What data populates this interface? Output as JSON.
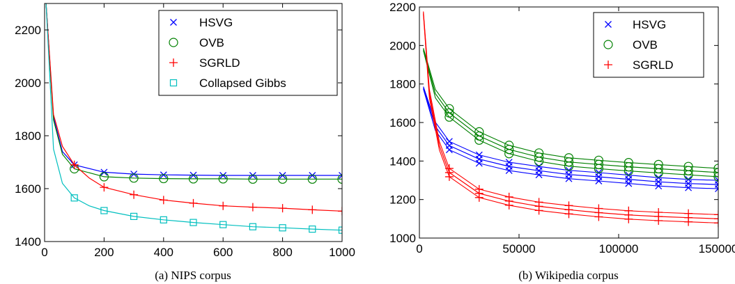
{
  "chart_data": [
    {
      "type": "line",
      "caption": "(a)  NIPS corpus",
      "xlim": [
        0,
        1000
      ],
      "ylim": [
        1400,
        2300
      ],
      "xticks": [
        0,
        200,
        400,
        600,
        800,
        1000
      ],
      "yticks": [
        1400,
        1600,
        1800,
        2000,
        2200
      ],
      "legend_position": "top-right",
      "series": [
        {
          "name": "HSVG",
          "color": "#0000ff",
          "marker": "x",
          "x": [
            5,
            30,
            60,
            100,
            200,
            300,
            400,
            500,
            600,
            700,
            800,
            900,
            1000
          ],
          "y": [
            2300,
            1870,
            1740,
            1690,
            1662,
            1655,
            1652,
            1651,
            1650,
            1650,
            1650,
            1650,
            1650
          ]
        },
        {
          "name": "OVB",
          "color": "#008000",
          "marker": "o",
          "x": [
            5,
            30,
            60,
            100,
            200,
            300,
            400,
            500,
            600,
            700,
            800,
            900,
            1000
          ],
          "y": [
            2300,
            1860,
            1730,
            1675,
            1645,
            1640,
            1638,
            1637,
            1637,
            1636,
            1636,
            1636,
            1636
          ]
        },
        {
          "name": "SGRLD",
          "color": "#ff0000",
          "marker": "+",
          "x": [
            5,
            30,
            60,
            100,
            150,
            200,
            300,
            400,
            500,
            600,
            700,
            800,
            900,
            1000
          ],
          "y": [
            2300,
            1880,
            1760,
            1690,
            1640,
            1605,
            1577,
            1557,
            1545,
            1535,
            1530,
            1526,
            1520,
            1515
          ]
        },
        {
          "name": "Collapsed Gibbs",
          "color": "#00bfbf",
          "marker": "s",
          "x": [
            5,
            30,
            60,
            100,
            150,
            200,
            300,
            400,
            500,
            600,
            700,
            800,
            900,
            1000
          ],
          "y": [
            2300,
            1750,
            1620,
            1565,
            1535,
            1517,
            1495,
            1482,
            1472,
            1464,
            1456,
            1452,
            1447,
            1443
          ]
        }
      ]
    },
    {
      "type": "line",
      "caption": "(b)  Wikipedia corpus",
      "xlim": [
        0,
        150000
      ],
      "ylim": [
        1000,
        2200
      ],
      "xticks": [
        0,
        50000,
        100000,
        150000
      ],
      "yticks": [
        1000,
        1200,
        1400,
        1600,
        1800,
        2000,
        2200
      ],
      "legend_position": "top-right",
      "series": [
        {
          "name": "HSVG",
          "color": "#0000ff",
          "marker": "x",
          "x": [
            2000,
            8000,
            15000,
            30000,
            45000,
            60000,
            75000,
            90000,
            105000,
            120000,
            135000,
            150000
          ],
          "y": [
            1780,
            1580,
            1480,
            1410,
            1372,
            1350,
            1330,
            1318,
            1305,
            1292,
            1283,
            1278
          ]
        },
        {
          "name": "OVB",
          "color": "#008000",
          "marker": "o",
          "x": [
            2000,
            8000,
            15000,
            30000,
            45000,
            60000,
            75000,
            90000,
            105000,
            120000,
            135000,
            150000
          ],
          "y": [
            1980,
            1750,
            1650,
            1530,
            1460,
            1420,
            1395,
            1382,
            1370,
            1360,
            1350,
            1340
          ]
        },
        {
          "name": "SGRLD",
          "color": "#ff0000",
          "marker": "+",
          "x": [
            2000,
            5000,
            10000,
            15000,
            30000,
            45000,
            60000,
            75000,
            90000,
            105000,
            120000,
            135000,
            150000
          ],
          "y": [
            2170,
            1750,
            1480,
            1340,
            1232,
            1192,
            1165,
            1147,
            1132,
            1120,
            1112,
            1106,
            1100
          ]
        }
      ]
    }
  ]
}
